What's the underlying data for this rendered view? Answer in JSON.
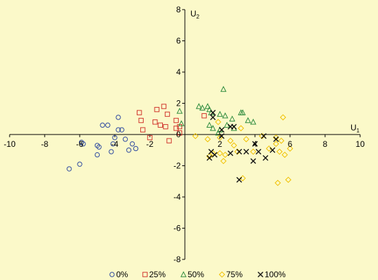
{
  "chart_data": {
    "type": "scatter",
    "title": "",
    "xlabel": "U",
    "xlabel_sub": "1",
    "ylabel": "U",
    "ylabel_sub": "2",
    "xlim": [
      -10,
      10
    ],
    "ylim": [
      -8,
      8
    ],
    "x_ticks": [
      -10,
      -8,
      -6,
      -4,
      -2,
      0,
      2,
      4,
      6,
      8,
      10
    ],
    "y_ticks": [
      -8,
      -6,
      -4,
      -2,
      0,
      2,
      4,
      6,
      8
    ],
    "grid": false,
    "legend_position": "bottom",
    "background_color": "#fbf9c9",
    "series": [
      {
        "name": "0%",
        "marker": "circle",
        "color": "#2e4aa0",
        "points": [
          [
            -6.6,
            -2.2
          ],
          [
            -6.0,
            -1.9
          ],
          [
            -5.9,
            -0.5
          ],
          [
            -5.8,
            -0.6
          ],
          [
            -5.0,
            -1.3
          ],
          [
            -5.0,
            -0.7
          ],
          [
            -4.9,
            -0.8
          ],
          [
            -4.7,
            0.6
          ],
          [
            -4.4,
            0.6
          ],
          [
            -4.2,
            -1.1
          ],
          [
            -4.1,
            -0.6
          ],
          [
            -4.0,
            -0.2
          ],
          [
            -3.8,
            1.1
          ],
          [
            -3.8,
            0.3
          ],
          [
            -3.6,
            0.3
          ],
          [
            -3.4,
            -0.3
          ],
          [
            -3.2,
            -1.0
          ],
          [
            -3.0,
            -0.6
          ],
          [
            -2.8,
            -0.9
          ]
        ]
      },
      {
        "name": "25%",
        "marker": "square",
        "color": "#d0342c",
        "points": [
          [
            -2.6,
            1.4
          ],
          [
            -2.5,
            0.9
          ],
          [
            -2.4,
            0.3
          ],
          [
            -2.0,
            -0.2
          ],
          [
            -1.7,
            0.8
          ],
          [
            -1.6,
            1.6
          ],
          [
            -1.4,
            0.6
          ],
          [
            -1.2,
            1.8
          ],
          [
            -1.1,
            0.5
          ],
          [
            -1.0,
            1.3
          ],
          [
            -0.9,
            -0.4
          ],
          [
            -0.5,
            0.9
          ],
          [
            -0.5,
            0.4
          ],
          [
            -0.3,
            0.1
          ],
          [
            -0.3,
            0.5
          ],
          [
            1.1,
            1.2
          ]
        ]
      },
      {
        "name": "50%",
        "marker": "triangle",
        "color": "#2c8a3c",
        "points": [
          [
            -0.3,
            1.5
          ],
          [
            -0.2,
            0.7
          ],
          [
            0.8,
            1.8
          ],
          [
            1.0,
            1.7
          ],
          [
            1.3,
            1.8
          ],
          [
            1.4,
            1.6
          ],
          [
            1.4,
            0.6
          ],
          [
            1.5,
            1.4
          ],
          [
            1.6,
            0.4
          ],
          [
            1.9,
            0.1
          ],
          [
            2.0,
            0.3
          ],
          [
            2.0,
            1.3
          ],
          [
            2.2,
            2.9
          ],
          [
            2.3,
            1.2
          ],
          [
            2.4,
            0.6
          ],
          [
            2.7,
            1.0
          ],
          [
            2.8,
            0.4
          ],
          [
            3.2,
            1.4
          ],
          [
            3.3,
            1.4
          ],
          [
            3.6,
            0.9
          ],
          [
            3.9,
            0.8
          ]
        ]
      },
      {
        "name": "75%",
        "marker": "diamond",
        "color": "#f0c000",
        "points": [
          [
            0.6,
            -0.1
          ],
          [
            1.3,
            -0.3
          ],
          [
            1.4,
            -1.4
          ],
          [
            1.6,
            -1.2
          ],
          [
            1.9,
            0.8
          ],
          [
            2.0,
            -1.2
          ],
          [
            2.0,
            -0.2
          ],
          [
            2.2,
            -1.7
          ],
          [
            2.3,
            -1.3
          ],
          [
            2.6,
            -0.4
          ],
          [
            2.8,
            -0.7
          ],
          [
            3.0,
            -1.1
          ],
          [
            3.2,
            0.4
          ],
          [
            3.3,
            -2.8
          ],
          [
            3.5,
            -0.3
          ],
          [
            3.9,
            -1.1
          ],
          [
            4.4,
            -0.1
          ],
          [
            4.8,
            -0.9
          ],
          [
            5.2,
            -0.2
          ],
          [
            5.3,
            -3.1
          ],
          [
            5.4,
            -1.1
          ],
          [
            5.5,
            -0.4
          ],
          [
            5.6,
            1.1
          ],
          [
            5.7,
            -1.3
          ],
          [
            6.0,
            -0.9
          ],
          [
            5.9,
            -2.9
          ],
          [
            5.2,
            -0.6
          ]
        ]
      },
      {
        "name": "100%",
        "marker": "x",
        "color": "#111111",
        "points": [
          [
            1.6,
            1.4
          ],
          [
            1.6,
            1.1
          ],
          [
            1.5,
            -1.1
          ],
          [
            1.4,
            -1.5
          ],
          [
            1.7,
            -1.3
          ],
          [
            2.1,
            0.3
          ],
          [
            2.1,
            -0.1
          ],
          [
            2.6,
            0.5
          ],
          [
            2.6,
            -1.2
          ],
          [
            2.8,
            0.5
          ],
          [
            3.1,
            -2.9
          ],
          [
            3.1,
            -1.1
          ],
          [
            3.5,
            -1.1
          ],
          [
            3.9,
            -1.7
          ],
          [
            4.0,
            -0.6
          ],
          [
            4.2,
            -1.1
          ],
          [
            4.5,
            -0.1
          ],
          [
            4.6,
            -1.5
          ],
          [
            5.2,
            -0.3
          ],
          [
            5.0,
            -1.0
          ]
        ]
      }
    ]
  }
}
